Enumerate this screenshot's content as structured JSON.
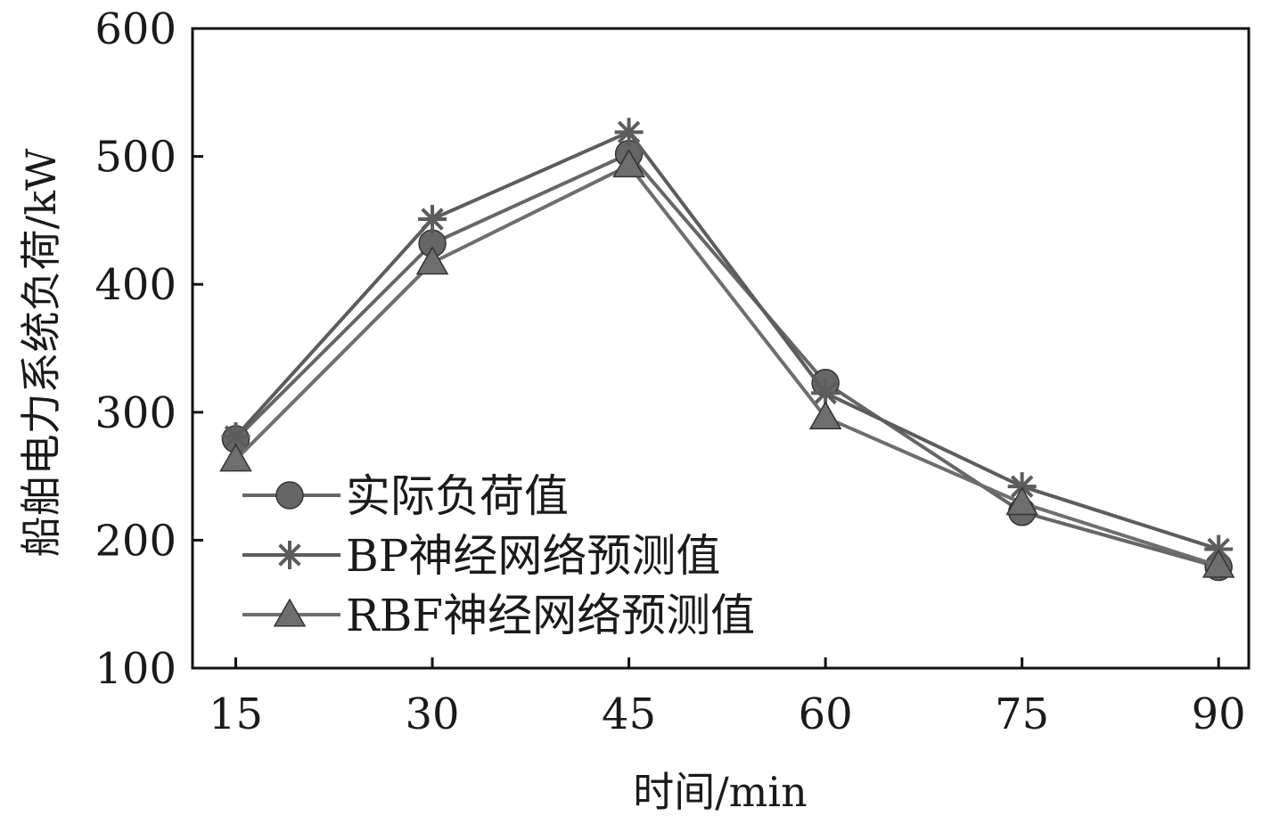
{
  "chart_data": {
    "type": "line",
    "title": "",
    "xlabel": "时间/min",
    "ylabel": "船舶电力系统负荷/kW",
    "x": [
      15,
      30,
      45,
      60,
      75,
      90
    ],
    "xlim": [
      11.7,
      92.3
    ],
    "ylim": [
      100,
      600
    ],
    "yticks": [
      100,
      200,
      300,
      400,
      500,
      600
    ],
    "grid": false,
    "legend_position": "lower-left",
    "series": [
      {
        "name": "实际负荷值",
        "marker": "circle",
        "color": "#666666",
        "values": [
          279,
          432,
          502,
          323,
          222,
          179
        ]
      },
      {
        "name": "BP神经网络预测值",
        "marker": "star",
        "color": "#5c5c5c",
        "values": [
          281,
          451,
          519,
          315,
          242,
          193
        ]
      },
      {
        "name": "RBF神经网络预测值",
        "marker": "triangle",
        "color": "#6e6e6e",
        "values": [
          263,
          417,
          493,
          296,
          229,
          180
        ]
      }
    ]
  }
}
